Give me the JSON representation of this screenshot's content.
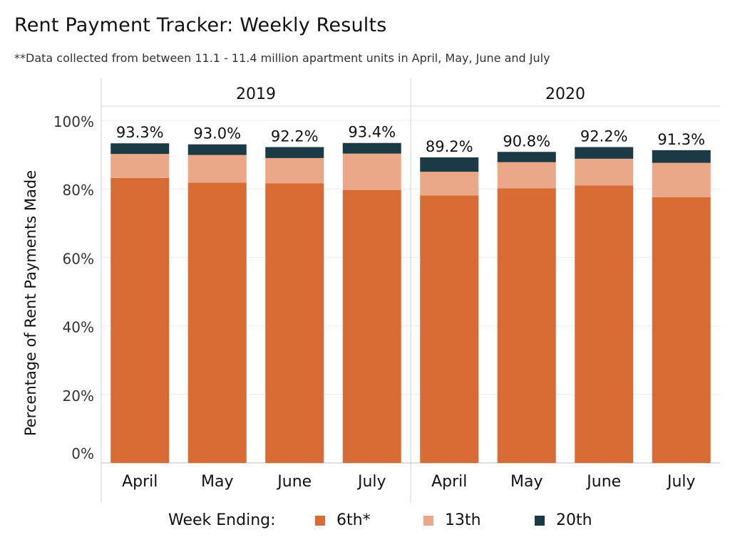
{
  "title": "Rent Payment Tracker: Weekly Results",
  "subtitle": "**Data collected from between 11.1 - 11.4 million apartment units in April, May, June and July",
  "chart_data": {
    "type": "bar",
    "stacked": true,
    "title": "Rent Payment Tracker: Weekly Results",
    "subtitle": "**Data collected from between 11.1 - 11.4 million apartment units in April, May, June and July",
    "ylabel": "Percentage of Rent Payments Made",
    "xlabel": "",
    "ylim": [
      0,
      100
    ],
    "yticks": [
      "0%",
      "20%",
      "40%",
      "60%",
      "80%",
      "100%"
    ],
    "grid": true,
    "legend_position": "bottom",
    "legend_title": "Week Ending:",
    "panels": [
      {
        "name": "2019",
        "categories": [
          "April",
          "May",
          "June",
          "July"
        ],
        "totals_labels": [
          "93.3%",
          "93.0%",
          "92.2%",
          "93.4%"
        ],
        "series": [
          {
            "name": "6th*",
            "values": [
              83.2,
              81.8,
              81.6,
              79.7
            ]
          },
          {
            "name": "13th",
            "values": [
              7.0,
              8.1,
              7.4,
              10.6
            ]
          },
          {
            "name": "20th",
            "values": [
              3.1,
              3.1,
              3.2,
              3.1
            ]
          }
        ]
      },
      {
        "name": "2020",
        "categories": [
          "April",
          "May",
          "June",
          "July"
        ],
        "totals_labels": [
          "89.2%",
          "90.8%",
          "92.2%",
          "91.3%"
        ],
        "series": [
          {
            "name": "6th*",
            "values": [
              78.1,
              80.2,
              81.0,
              77.6
            ]
          },
          {
            "name": "13th",
            "values": [
              6.9,
              7.6,
              7.8,
              10.0
            ]
          },
          {
            "name": "20th",
            "values": [
              4.2,
              3.0,
              3.4,
              3.7
            ]
          }
        ]
      }
    ],
    "colors": {
      "6th*": "#d86b34",
      "13th": "#eaa889",
      "20th": "#1c3a44"
    }
  },
  "legend": {
    "title": "Week Ending:",
    "items": [
      {
        "label": "6th*",
        "color": "#d86b34"
      },
      {
        "label": "13th",
        "color": "#eaa889"
      },
      {
        "label": "20th",
        "color": "#1c3a44"
      }
    ]
  }
}
